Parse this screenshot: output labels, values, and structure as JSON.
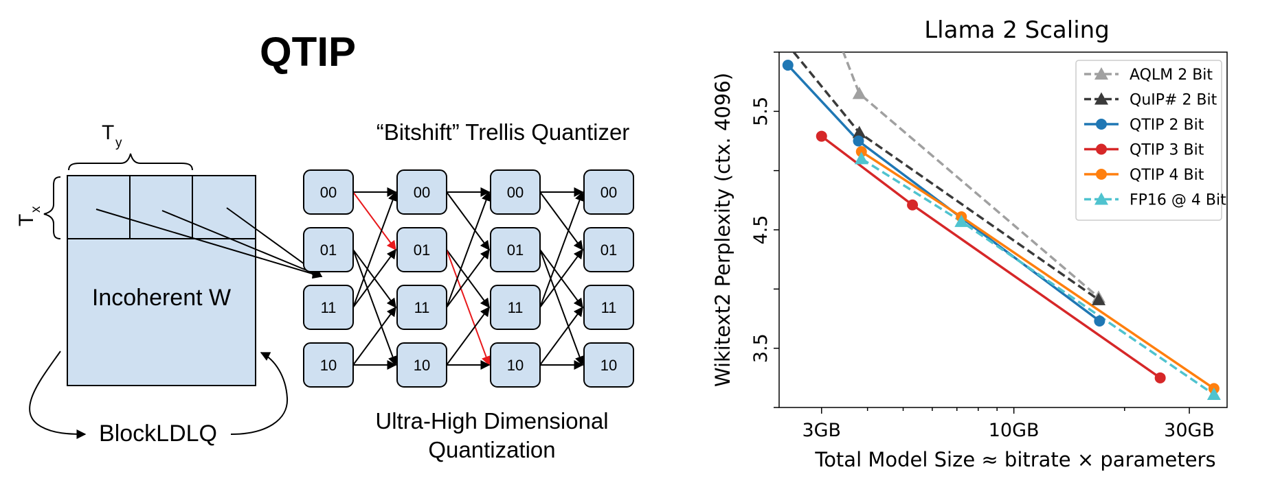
{
  "diagram": {
    "title": "QTIP",
    "ty_label": "T",
    "ty_sub": "y",
    "tx_label": "T",
    "tx_sub": "x",
    "matrix_label": "Incoherent W",
    "blockldlq_label": "BlockLDLQ",
    "trellis_title": "“Bitshift” Trellis Quantizer",
    "trellis_caption_line1": "Ultra-High Dimensional",
    "trellis_caption_line2": "Quantization",
    "node_states": [
      "00",
      "01",
      "11",
      "10"
    ],
    "colors": {
      "node_fill": "#cfe0f1",
      "matrix_fill": "#cfe0f1",
      "highlight_path": "#e8191c"
    }
  },
  "chart_data": {
    "type": "line",
    "title": "Llama 2 Scaling",
    "xlabel": "Total Model Size  ≈ bitrate × parameters",
    "ylabel": "Wikitext2 Perplexity (ctx. 4096)",
    "x_scale": "log",
    "xlim": [
      2.3,
      38
    ],
    "ylim": [
      3.0,
      6.0
    ],
    "x_ticks": [
      {
        "value": 3,
        "label": "3GB"
      },
      {
        "value": 10,
        "label": "10GB"
      },
      {
        "value": 30,
        "label": "30GB"
      }
    ],
    "y_ticks": [
      {
        "value": 3.5,
        "label": "3.5"
      },
      {
        "value": 4.5,
        "label": "4.5"
      },
      {
        "value": 5.5,
        "label": "5.5"
      }
    ],
    "legend_position": "top-right",
    "grid": false,
    "series": [
      {
        "name": "AQLM 2 Bit",
        "color": "#a0a0a0",
        "dash": "dashed",
        "marker": "triangle",
        "x": [
          3.8,
          17.0
        ],
        "y": [
          5.65,
          3.93
        ],
        "line_start": [
          2.98,
          6.5
        ]
      },
      {
        "name": "QuIP# 2 Bit",
        "color": "#3a3a3a",
        "dash": "dashed",
        "marker": "triangle",
        "x": [
          3.8,
          17.0
        ],
        "y": [
          5.32,
          3.91
        ],
        "line_start": [
          2.52,
          6.0
        ]
      },
      {
        "name": "QTIP 2 Bit",
        "color": "#1f77b4",
        "dash": "solid",
        "marker": "circle",
        "x": [
          2.43,
          3.78,
          17.1
        ],
        "y": [
          5.89,
          5.25,
          3.73
        ]
      },
      {
        "name": "QTIP 3 Bit",
        "color": "#d62728",
        "dash": "solid",
        "marker": "circle",
        "x": [
          3.0,
          5.3,
          25.0
        ],
        "y": [
          5.29,
          4.71,
          3.25
        ]
      },
      {
        "name": "QTIP 4 Bit",
        "color": "#ff7f0e",
        "dash": "solid",
        "marker": "circle",
        "x": [
          3.85,
          7.2,
          35.0
        ],
        "y": [
          5.16,
          4.61,
          3.16
        ]
      },
      {
        "name": "FP16 @ 4 Bit",
        "color": "#4fc3cf",
        "dash": "dashed",
        "marker": "triangle",
        "x": [
          3.85,
          7.2,
          35.0
        ],
        "y": [
          5.1,
          4.57,
          3.11
        ]
      }
    ]
  }
}
